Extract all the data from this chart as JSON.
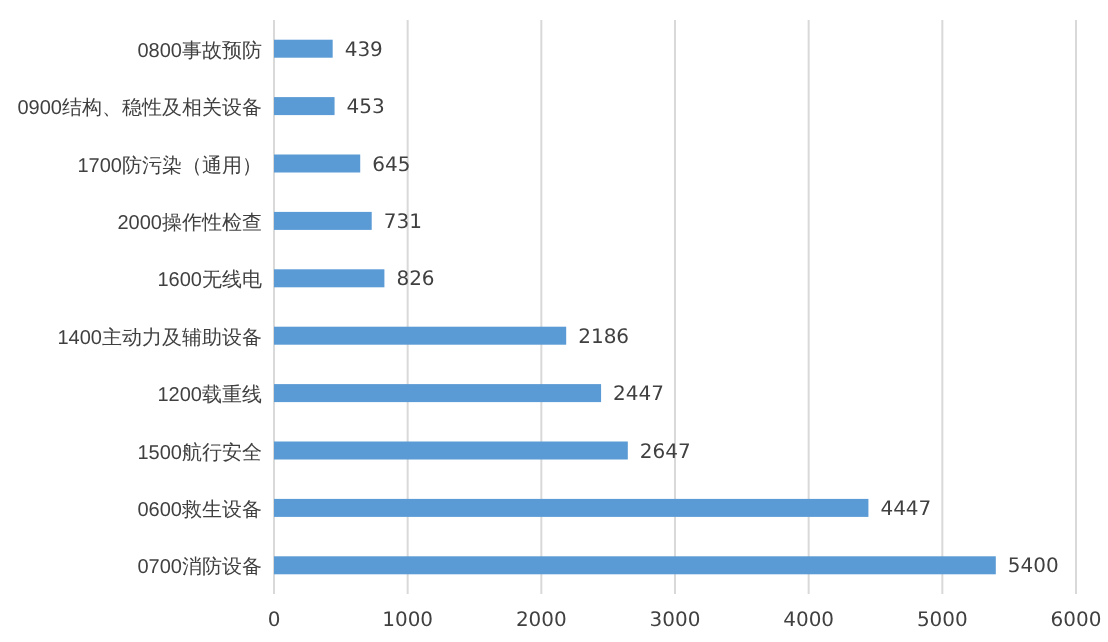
{
  "chart_data": {
    "type": "bar",
    "orientation": "horizontal",
    "categories": [
      "0800事故预防",
      "0900结构、稳性及相关设备",
      "1700防污染（通用）",
      "2000操作性检查",
      "1600无线电",
      "1400主动力及辅助设备",
      "1200载重线",
      "1500航行安全",
      "0600救生设备",
      "0700消防设备"
    ],
    "values": [
      439,
      453,
      645,
      731,
      826,
      2186,
      2447,
      2647,
      4447,
      5400
    ],
    "color": "#5b9bd5",
    "xlim": [
      0,
      6000
    ],
    "xticks": [
      0,
      1000,
      2000,
      3000,
      4000,
      5000,
      6000
    ],
    "grid": "x",
    "data_labels": true
  }
}
